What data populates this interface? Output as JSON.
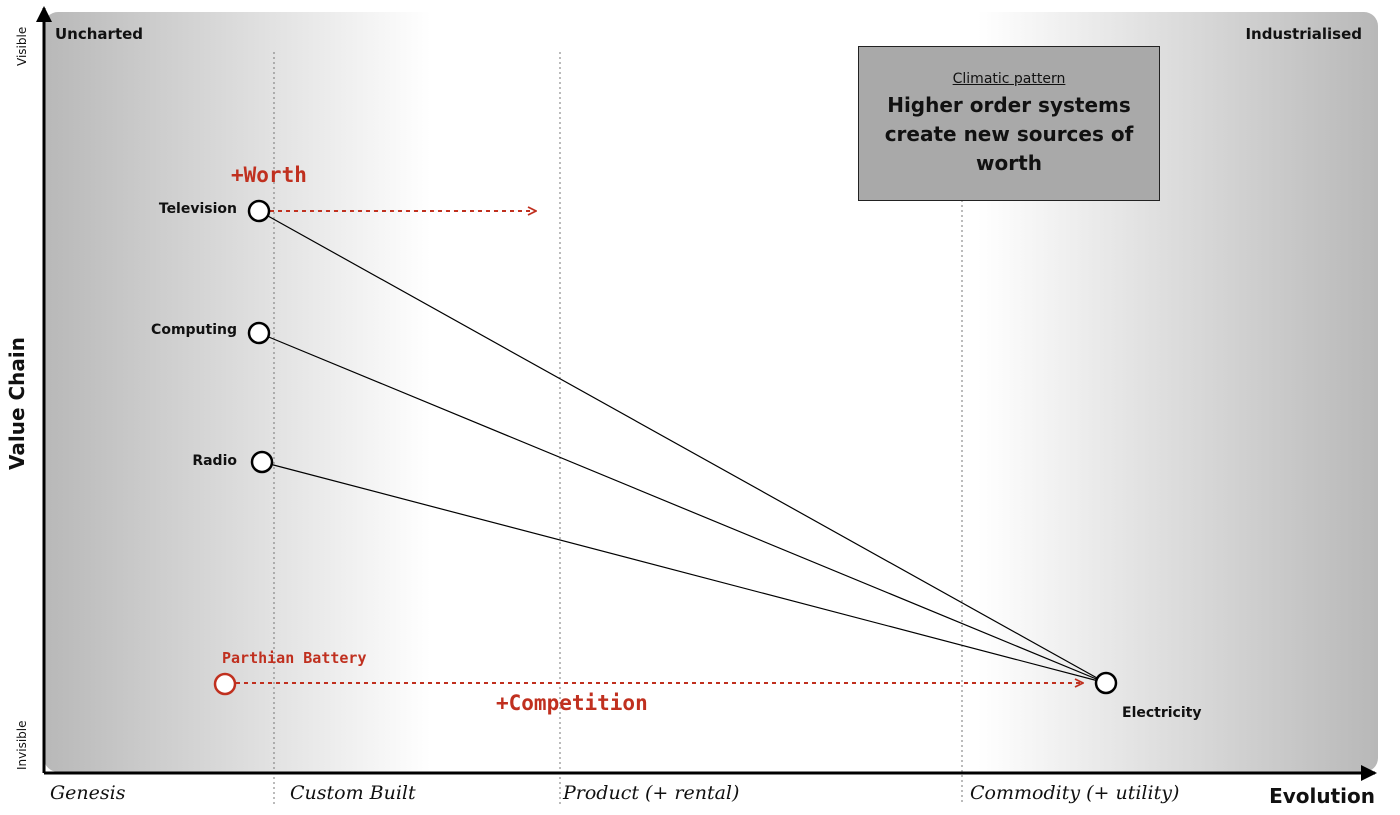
{
  "map": {
    "corner_left": "Uncharted",
    "corner_right": "Industrialised",
    "y_axis_title": "Value Chain",
    "y_top_label": "Visible",
    "y_bottom_label": "Invisible",
    "x_axis_title": "Evolution",
    "stages": [
      "Genesis",
      "Custom Built",
      "Product (+ rental)",
      "Commodity (+ utility)"
    ]
  },
  "components": {
    "television": "Television",
    "computing": "Computing",
    "radio": "Radio",
    "electricity": "Electricity",
    "parthian_battery": "Parthian Battery"
  },
  "annotations": {
    "worth": "+Worth",
    "competition": "+Competition"
  },
  "note": {
    "title": "Climatic pattern",
    "text": "Higher order systems create new sources of worth"
  },
  "colors": {
    "accent_red": "#c0301f",
    "note_fill": "#a9a9a9"
  }
}
